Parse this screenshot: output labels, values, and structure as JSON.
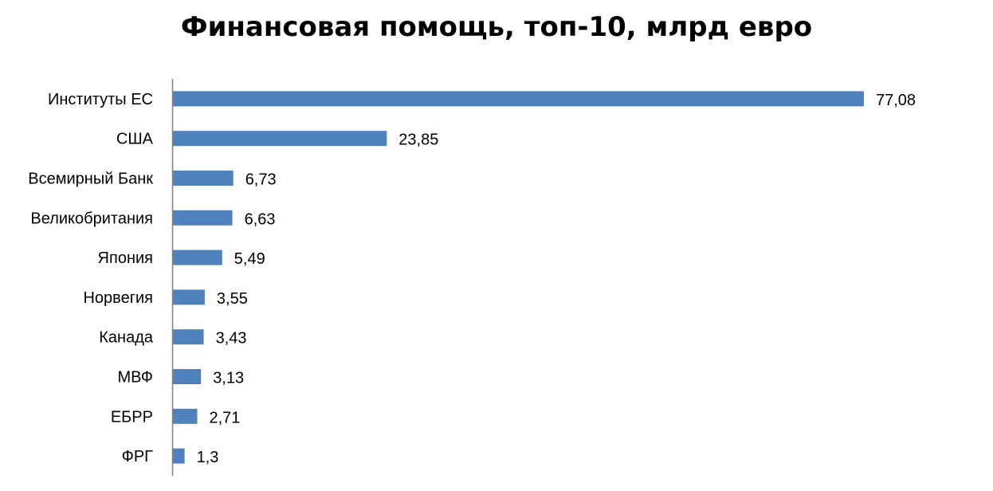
{
  "chart_data": {
    "type": "bar",
    "orientation": "horizontal",
    "title": "Финансовая помощь, топ-10, млрд евро",
    "xlabel": "",
    "ylabel": "",
    "categories": [
      "Институты ЕС",
      "США",
      "Всемирный Банк",
      "Великобритания",
      "Япония",
      "Норвегия",
      "Канада",
      "МВФ",
      "ЕБРР",
      "ФРГ"
    ],
    "values": [
      77.08,
      23.85,
      6.73,
      6.63,
      5.49,
      3.55,
      3.43,
      3.13,
      2.71,
      1.3
    ],
    "value_labels": [
      "77,08",
      "23,85",
      "6,73",
      "6,63",
      "5,49",
      "3,55",
      "3,43",
      "3,13",
      "2,71",
      "1,3"
    ],
    "xlim": [
      0,
      80
    ],
    "grid": false,
    "legend": "none",
    "bar_color": "#4f81bd"
  }
}
